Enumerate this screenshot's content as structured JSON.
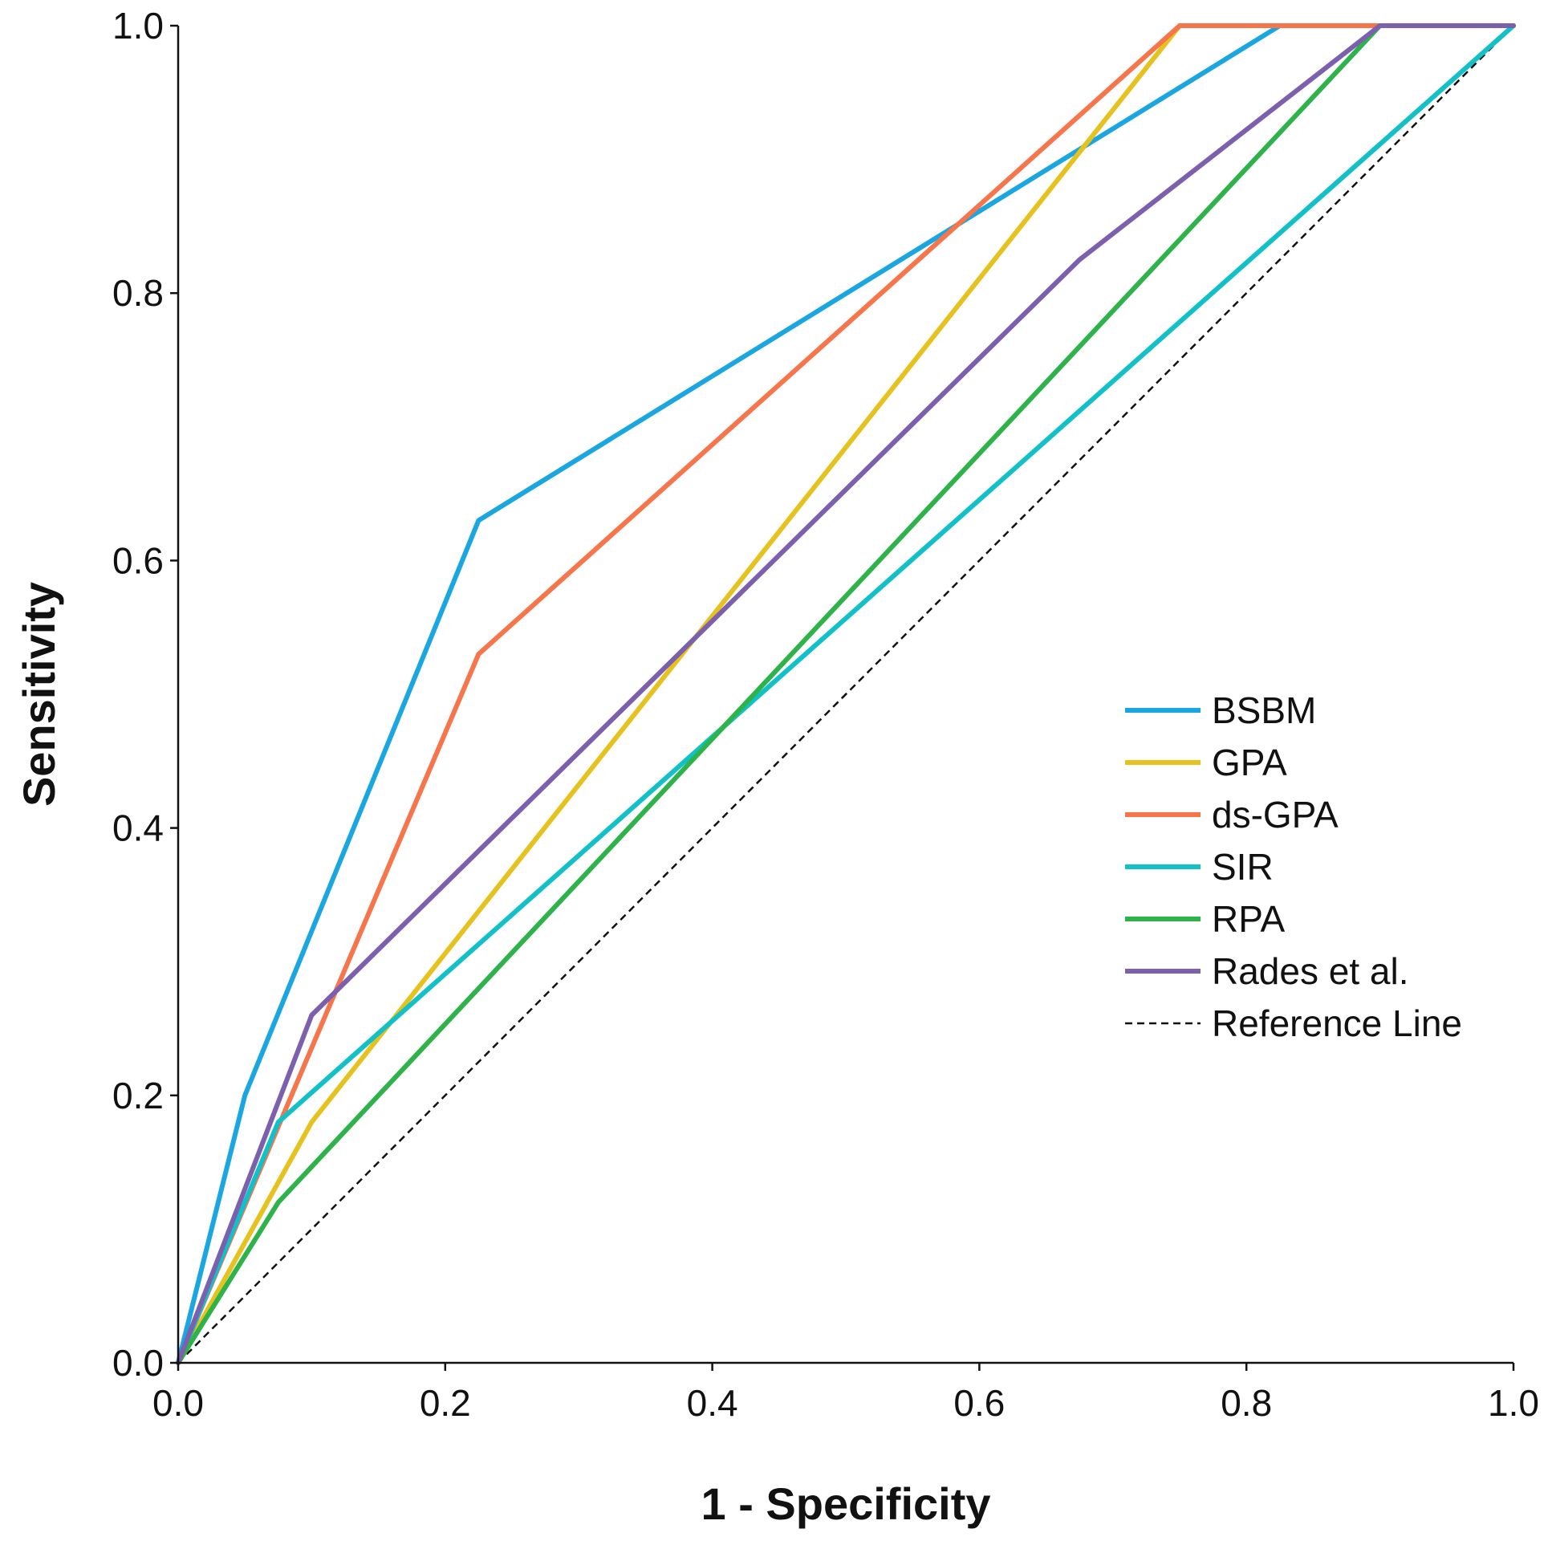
{
  "chart_data": {
    "type": "line",
    "title": "",
    "xlabel": "1 - Specificity",
    "ylabel": "Sensitivity",
    "xlim": [
      0,
      1
    ],
    "ylim": [
      0,
      1
    ],
    "xticks": [
      "0.0",
      "0.2",
      "0.4",
      "0.6",
      "0.8",
      "1.0"
    ],
    "yticks": [
      "0.0",
      "0.2",
      "0.4",
      "0.6",
      "0.8",
      "1.0"
    ],
    "grid": false,
    "legend_position": "right",
    "series": [
      {
        "name": "BSBM",
        "color": "#1aa6e0",
        "x": [
          0,
          0.05,
          0.225,
          0.825,
          1.0
        ],
        "y": [
          0,
          0.2,
          0.63,
          1.0,
          1.0
        ]
      },
      {
        "name": "GPA",
        "color": "#e6c21f",
        "x": [
          0,
          0.1,
          0.75,
          1.0
        ],
        "y": [
          0,
          0.18,
          1.0,
          1.0
        ]
      },
      {
        "name": "ds-GPA",
        "color": "#f7754a",
        "x": [
          0,
          0.225,
          0.75,
          1.0
        ],
        "y": [
          0,
          0.53,
          1.0,
          1.0
        ]
      },
      {
        "name": "SIR",
        "color": "#12c0c8",
        "x": [
          0,
          0.075,
          1.0
        ],
        "y": [
          0,
          0.18,
          1.0
        ]
      },
      {
        "name": "RPA",
        "color": "#2db34a",
        "x": [
          0,
          0.075,
          0.9,
          1.0
        ],
        "y": [
          0,
          0.12,
          1.0,
          1.0
        ]
      },
      {
        "name": "Rades et al.",
        "color": "#7c5fad",
        "x": [
          0,
          0.1,
          0.675,
          0.9,
          1.0
        ],
        "y": [
          0,
          0.26,
          0.825,
          1.0,
          1.0
        ]
      },
      {
        "name": "Reference Line",
        "color": "#111111",
        "style": "dashed",
        "x": [
          0,
          1
        ],
        "y": [
          0,
          1
        ]
      }
    ]
  }
}
